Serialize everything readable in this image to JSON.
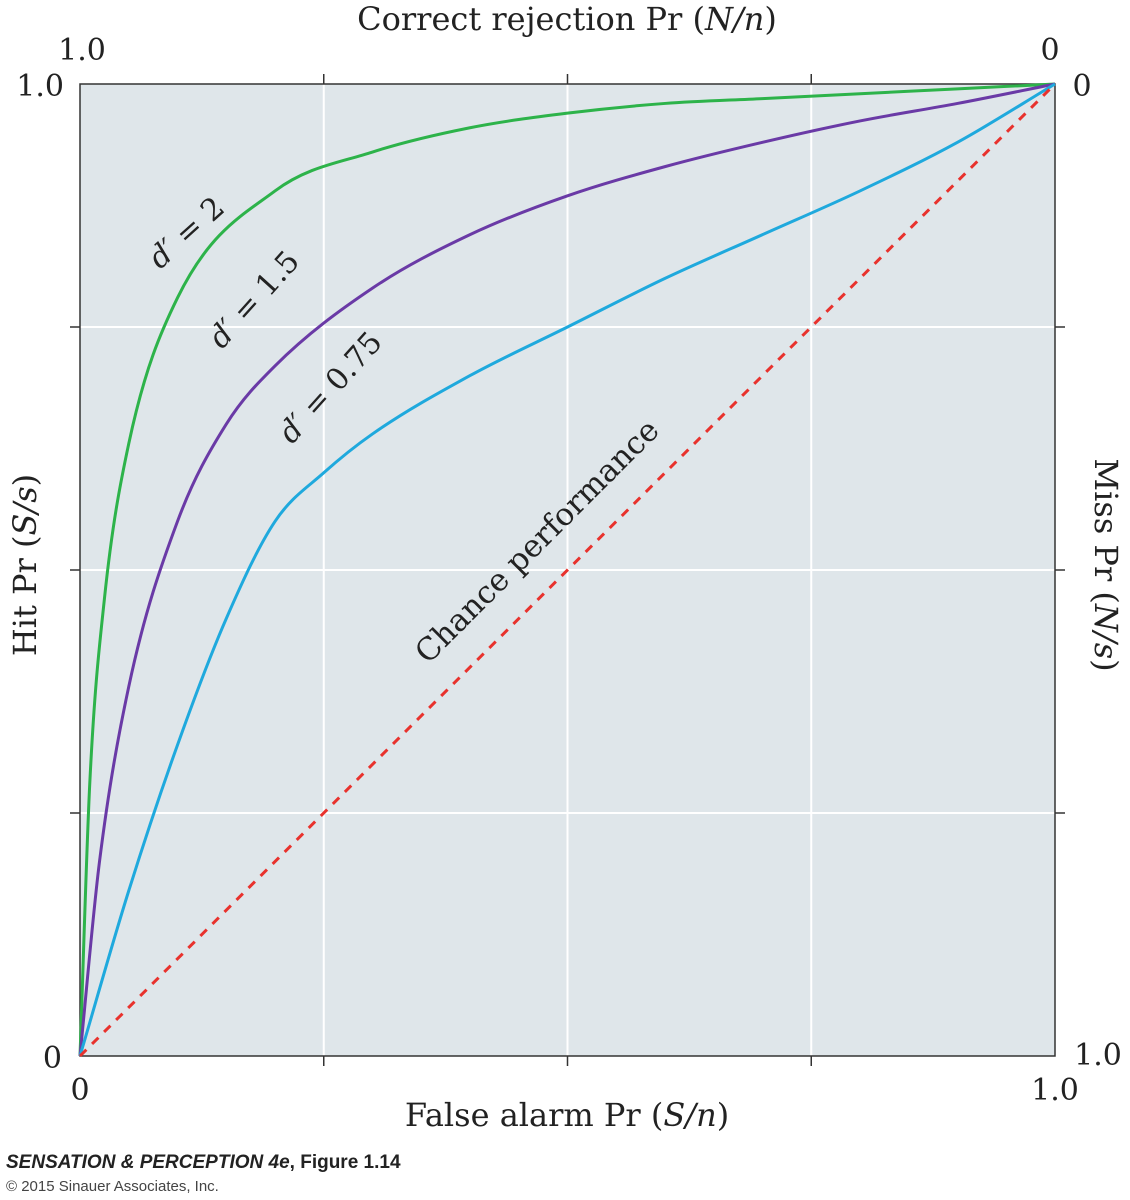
{
  "chart_data": {
    "type": "line",
    "title": "",
    "x_axis": {
      "label_text": "False alarm Pr (",
      "label_var": "S/n",
      "label_close": ")",
      "range": [
        0,
        1
      ],
      "tick_labels": [
        "0",
        "1.0"
      ]
    },
    "y_axis": {
      "label_text": "Hit Pr (",
      "label_var": "S/s",
      "label_close": ")",
      "range": [
        0,
        1
      ],
      "tick_labels": [
        "0",
        "1.0"
      ]
    },
    "top_axis": {
      "label_text": "Correct rejection Pr (",
      "label_var": "N/n",
      "label_close": ")",
      "tick_left": "1.0",
      "tick_right": "0"
    },
    "right_axis": {
      "label_text": "Miss Pr (",
      "label_var": "N/s",
      "label_close": ")",
      "tick_top": "0",
      "tick_bottom": "1.0"
    },
    "grid": true,
    "series": [
      {
        "name": "d′ = 2",
        "label_var": "d′",
        "label_rest": " = 2",
        "color": "#2db34a",
        "dprime": 2,
        "points": [
          [
            0,
            0
          ],
          [
            0.01,
            0.28
          ],
          [
            0.025,
            0.47
          ],
          [
            0.05,
            0.63
          ],
          [
            0.1,
            0.78
          ],
          [
            0.2,
            0.89
          ],
          [
            0.3,
            0.93
          ],
          [
            0.4,
            0.955
          ],
          [
            0.5,
            0.97
          ],
          [
            0.6,
            0.98
          ],
          [
            0.7,
            0.985
          ],
          [
            0.8,
            0.99
          ],
          [
            0.9,
            0.995
          ],
          [
            1,
            1
          ]
        ]
      },
      {
        "name": "d′ = 1.5",
        "label_var": "d′",
        "label_rest": " = 1.5",
        "color": "#6a3aa6",
        "dprime": 1.5,
        "points": [
          [
            0,
            0
          ],
          [
            0.02,
            0.2
          ],
          [
            0.05,
            0.38
          ],
          [
            0.1,
            0.55
          ],
          [
            0.15,
            0.65
          ],
          [
            0.2,
            0.71
          ],
          [
            0.3,
            0.79
          ],
          [
            0.4,
            0.845
          ],
          [
            0.5,
            0.885
          ],
          [
            0.6,
            0.915
          ],
          [
            0.7,
            0.94
          ],
          [
            0.8,
            0.962
          ],
          [
            0.9,
            0.98
          ],
          [
            1,
            1
          ]
        ]
      },
      {
        "name": "d′ = 0.75",
        "label_var": "d′",
        "label_rest": " = 0.75",
        "color": "#1fa9dd",
        "dprime": 0.75,
        "points": [
          [
            0,
            0
          ],
          [
            0.05,
            0.17
          ],
          [
            0.1,
            0.32
          ],
          [
            0.15,
            0.45
          ],
          [
            0.2,
            0.55
          ],
          [
            0.25,
            0.6
          ],
          [
            0.3,
            0.64
          ],
          [
            0.4,
            0.7
          ],
          [
            0.5,
            0.75
          ],
          [
            0.6,
            0.8
          ],
          [
            0.7,
            0.845
          ],
          [
            0.8,
            0.89
          ],
          [
            0.9,
            0.94
          ],
          [
            1,
            1
          ]
        ]
      },
      {
        "name": "Chance performance",
        "color": "#e8322d",
        "style": "dashed",
        "points": [
          [
            0,
            0
          ],
          [
            1,
            1
          ]
        ]
      }
    ]
  },
  "credit": {
    "title": "SENSATION & PERCEPTION 4e",
    "figure": ", Figure 1.14",
    "copyright": "© 2015 Sinauer Associates, Inc."
  }
}
